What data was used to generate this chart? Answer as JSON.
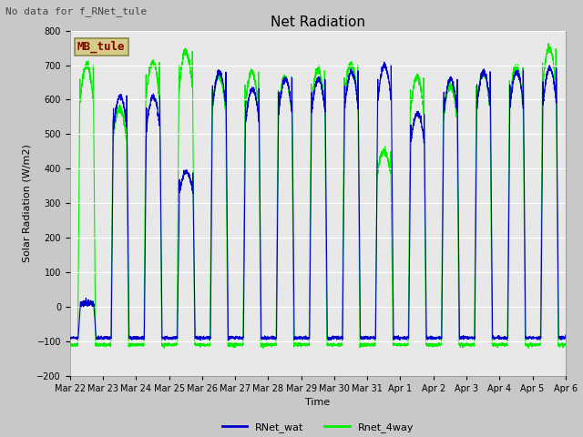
{
  "title": "Net Radiation",
  "xlabel": "Time",
  "ylabel": "Solar Radiation (W/m2)",
  "ylim": [
    -200,
    800
  ],
  "yticks": [
    -200,
    -100,
    0,
    100,
    200,
    300,
    400,
    500,
    600,
    700,
    800
  ],
  "annotation_text": "No data for f_RNet_tule",
  "station_box_text": "MB_tule",
  "station_box_color": "#d4cc88",
  "station_box_text_color": "#880000",
  "line1_color": "#0000cc",
  "line1_label": "RNet_wat",
  "line2_color": "#00ee00",
  "line2_label": "Rnet_4way",
  "axes_bg_color": "#e8e8e8",
  "fig_bg_color": "#c8c8c8",
  "x_tick_labels": [
    "Mar 22",
    "Mar 23",
    "Mar 24",
    "Mar 25",
    "Mar 26",
    "Mar 27",
    "Mar 28",
    "Mar 29",
    "Mar 30",
    "Mar 31",
    "Apr 1",
    "Apr 2",
    "Apr 3",
    "Apr 4",
    "Apr 5",
    "Apr 6"
  ],
  "n_days": 15,
  "pts_per_day": 288,
  "day_peak_wat": [
    10,
    610,
    610,
    390,
    680,
    630,
    660,
    660,
    680,
    700,
    560,
    660,
    680,
    680,
    690
  ],
  "day_peak_4way": [
    700,
    575,
    710,
    740,
    670,
    680,
    665,
    685,
    705,
    450,
    665,
    640,
    680,
    695,
    750
  ],
  "night_val": -90,
  "night_val_4way": -110,
  "line_width": 0.8,
  "fontsize_ticks": 7,
  "fontsize_title": 11,
  "fontsize_label": 8,
  "fontsize_legend": 8,
  "fontsize_annot": 8
}
